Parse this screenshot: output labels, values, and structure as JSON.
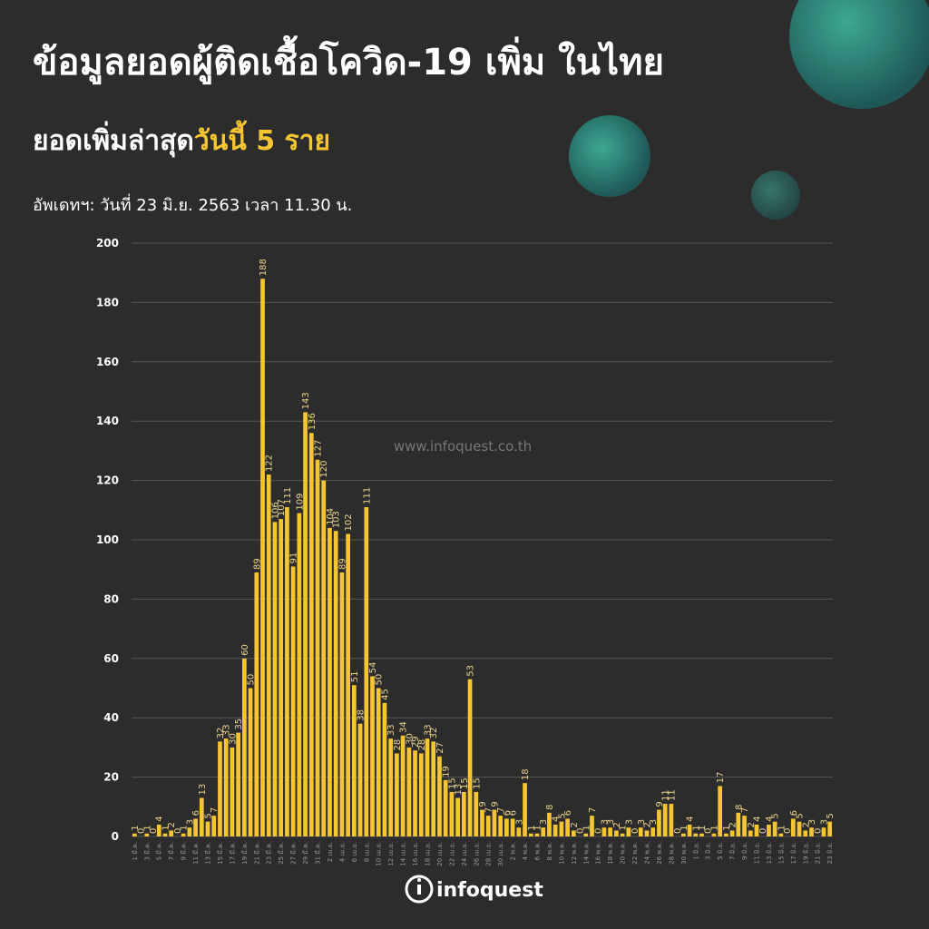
{
  "header": {
    "title": "ข้อมูลยอดผู้ติดเชื้อโควิด-19 เพิ่ม ในไทย",
    "subtitle": {
      "text": "ยอดเพิ่มล่าสุด",
      "highlight": "วันนี้ 5 ราย"
    },
    "update": "อัพเดทฯ: วันที่ 23 มิ.ย. 2563 เวลา 11.30 น."
  },
  "watermark": "www.infoquest.co.th",
  "logo": "infoquest",
  "chart_data": {
    "type": "bar",
    "color": "#f5c532",
    "grid": true,
    "ylim": [
      0,
      200
    ],
    "yticks": [
      0,
      20,
      40,
      60,
      80,
      100,
      120,
      140,
      160,
      180,
      200
    ],
    "categories": [
      "1 มี.ค.",
      null,
      "3 มี.ค.",
      null,
      "5 มี.ค.",
      null,
      "7 มี.ค.",
      null,
      "9 มี.ค.",
      null,
      "11 มี.ค.",
      null,
      "13 มี.ค.",
      null,
      "15 มี.ค.",
      null,
      "17 มี.ค.",
      null,
      "19 มี.ค.",
      null,
      "21 มี.ค.",
      null,
      "23 มี.ค.",
      null,
      "25 มี.ค.",
      null,
      "27 มี.ค.",
      null,
      "29 มี.ค.",
      null,
      "31 มี.ค.",
      null,
      "2 เม.ย.",
      null,
      "4 เม.ย.",
      null,
      "6 เม.ย.",
      null,
      "8 เม.ย.",
      null,
      "10 เม.ย.",
      null,
      "12 เม.ย.",
      null,
      "14 เม.ย.",
      null,
      "16 เม.ย.",
      null,
      "18 เม.ย.",
      null,
      "20 เม.ย.",
      null,
      "22 เม.ย.",
      null,
      "24 เม.ย.",
      null,
      "26 เม.ย.",
      null,
      "28 เม.ย.",
      null,
      "30 เม.ย.",
      null,
      "2 พ.ค.",
      null,
      "4 พ.ค.",
      null,
      "6 พ.ค.",
      null,
      "8 พ.ค.",
      null,
      "10 พ.ค.",
      null,
      "12 พ.ค.",
      null,
      "14 พ.ค.",
      null,
      "16 พ.ค.",
      null,
      "18 พ.ค.",
      null,
      "20 พ.ค.",
      null,
      "22 พ.ค.",
      null,
      "24 พ.ค.",
      null,
      "26 พ.ค.",
      null,
      "28 พ.ค.",
      null,
      "30 พ.ค.",
      null,
      "1 มิ.ย.",
      null,
      "3 มิ.ย.",
      null,
      "5 มิ.ย.",
      null,
      "7 มิ.ย.",
      null,
      "9 มิ.ย.",
      null,
      "11 มิ.ย.",
      null,
      "13 มิ.ย.",
      null,
      "15 มิ.ย.",
      null,
      "17 มิ.ย.",
      null,
      "19 มิ.ย.",
      null,
      "21 มิ.ย.",
      null,
      "23 มิ.ย."
    ],
    "values": [
      1,
      0,
      1,
      0,
      4,
      1,
      2,
      0,
      1,
      3,
      6,
      13,
      5,
      7,
      32,
      33,
      30,
      35,
      60,
      50,
      89,
      188,
      122,
      106,
      107,
      111,
      91,
      109,
      143,
      136,
      127,
      120,
      104,
      103,
      89,
      102,
      51,
      38,
      111,
      54,
      50,
      45,
      33,
      28,
      34,
      30,
      29,
      28,
      33,
      32,
      27,
      19,
      15,
      13,
      15,
      53,
      15,
      9,
      7,
      9,
      7,
      6,
      6,
      3,
      18,
      1,
      1,
      3,
      8,
      4,
      5,
      6,
      2,
      0,
      1,
      7,
      0,
      3,
      3,
      2,
      1,
      3,
      0,
      3,
      2,
      3,
      9,
      11,
      11,
      0,
      1,
      4,
      1,
      1,
      0,
      1,
      17,
      1,
      2,
      8,
      7,
      2,
      4,
      0,
      4,
      5,
      1,
      0,
      6,
      5,
      2,
      3,
      0,
      3,
      5
    ]
  }
}
